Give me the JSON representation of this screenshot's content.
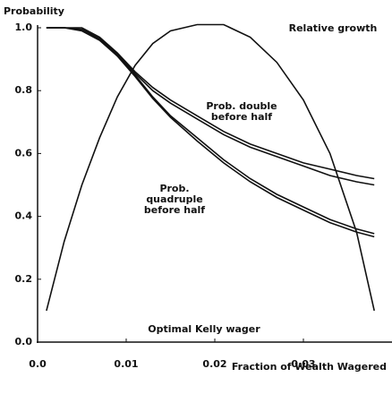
{
  "chart_data": {
    "type": "line",
    "y_label": "Probability",
    "x_label": "Fraction of Wealth Wagered",
    "annotation": "Optimal Kelly wager",
    "x": [
      0.001,
      0.003,
      0.005,
      0.007,
      0.009,
      0.011,
      0.013,
      0.015,
      0.018,
      0.021,
      0.024,
      0.027,
      0.03,
      0.033,
      0.036,
      0.038
    ],
    "series": [
      {
        "name": "Relative growth",
        "color": "#111111",
        "values": [
          0.1,
          0.32,
          0.5,
          0.65,
          0.78,
          0.88,
          0.95,
          0.99,
          1.01,
          1.01,
          0.97,
          0.89,
          0.77,
          0.6,
          0.35,
          0.1
        ]
      },
      {
        "name": "Prob. double before half",
        "color": "#111111",
        "values": [
          1.0,
          1.0,
          1.0,
          0.97,
          0.92,
          0.86,
          0.81,
          0.77,
          0.72,
          0.67,
          0.63,
          0.6,
          0.57,
          0.55,
          0.53,
          0.52
        ]
      },
      {
        "color": "#111111",
        "values": [
          1.0,
          1.0,
          0.995,
          0.965,
          0.915,
          0.855,
          0.8,
          0.76,
          0.71,
          0.66,
          0.62,
          0.59,
          0.56,
          0.53,
          0.51,
          0.5
        ]
      },
      {
        "name": "Prob. quadruple before half",
        "color": "#111111",
        "values": [
          1.0,
          1.0,
          0.995,
          0.965,
          0.915,
          0.85,
          0.78,
          0.72,
          0.65,
          0.58,
          0.52,
          0.47,
          0.43,
          0.39,
          0.36,
          0.345
        ]
      },
      {
        "color": "#111111",
        "values": [
          1.0,
          1.0,
          0.99,
          0.96,
          0.91,
          0.845,
          0.775,
          0.715,
          0.64,
          0.57,
          0.51,
          0.46,
          0.42,
          0.38,
          0.35,
          0.335
        ]
      }
    ],
    "xlim": [
      0,
      0.04
    ],
    "ylim": [
      0,
      1.0
    ],
    "xticks": [
      {
        "value": 0,
        "label": "0.0"
      },
      0.01,
      0.02,
      0.03
    ],
    "yticks": [
      {
        "value": 0,
        "label": "0.0"
      },
      0.2,
      0.4,
      0.6,
      0.8,
      {
        "value": 1.0,
        "label": "1.0"
      }
    ]
  }
}
